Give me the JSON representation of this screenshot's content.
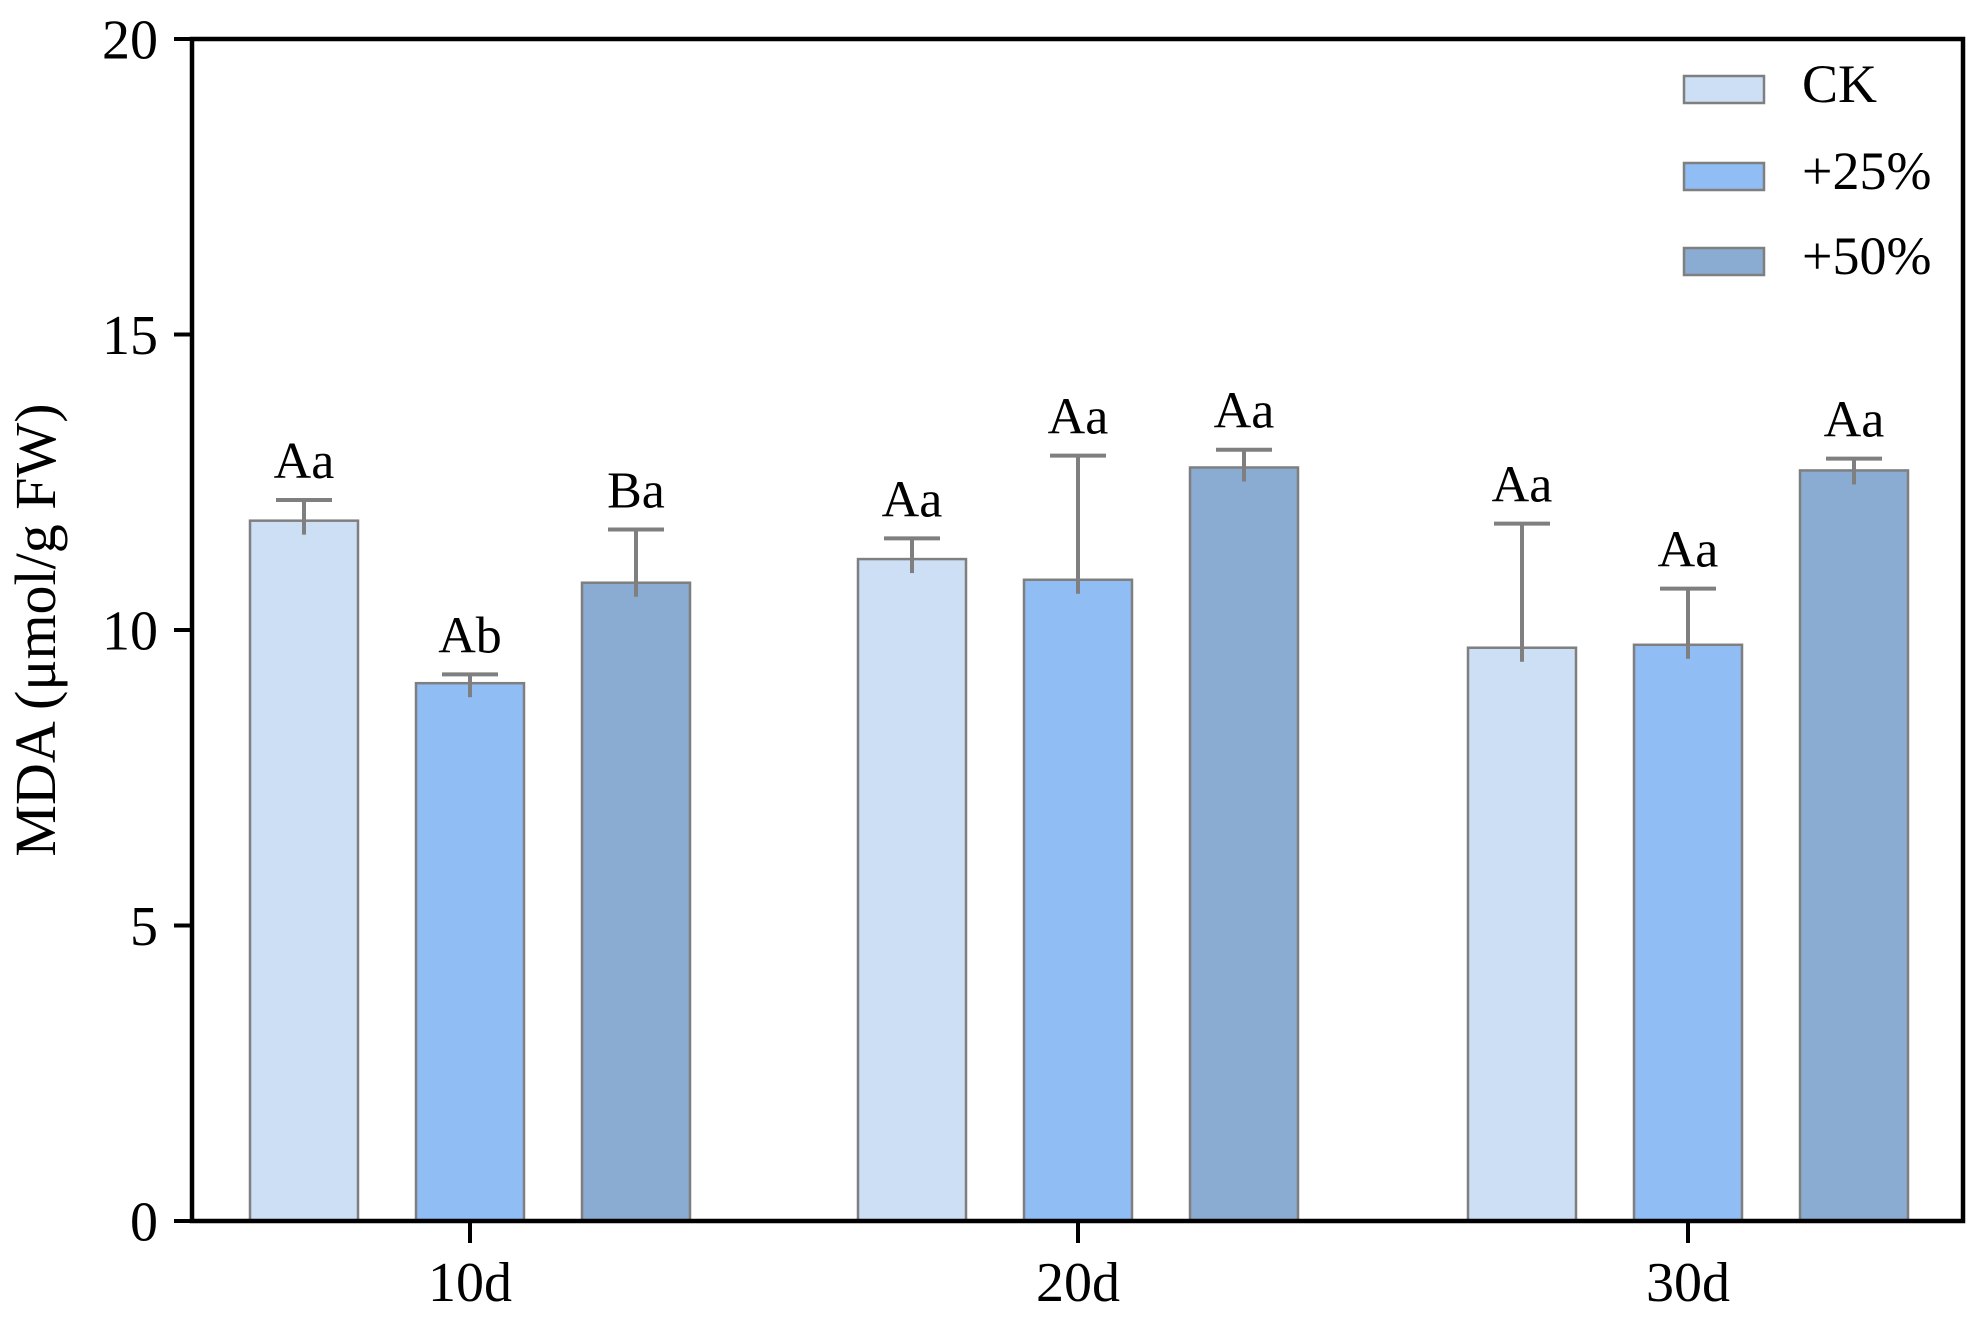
{
  "chart_data": {
    "type": "bar",
    "title": "",
    "xlabel": "",
    "ylabel": "MDA (μmol/g FW)",
    "categories": [
      "10d",
      "20d",
      "30d"
    ],
    "series": [
      {
        "name": "CK",
        "color": "#CDDFF5",
        "values": [
          11.85,
          11.2,
          9.7
        ],
        "errors_up": [
          0.35,
          0.35,
          2.1
        ],
        "sig_labels": [
          "Aa",
          "Aa",
          "Aa"
        ]
      },
      {
        "name": "+25%",
        "color": "#90BDF3",
        "values": [
          9.1,
          10.85,
          9.75
        ],
        "errors_up": [
          0.15,
          2.1,
          0.95
        ],
        "sig_labels": [
          "Ab",
          "Aa",
          "Aa"
        ]
      },
      {
        "name": "+50%",
        "color": "#8AABD2",
        "values": [
          10.8,
          12.75,
          12.7
        ],
        "errors_up": [
          0.9,
          0.3,
          0.2
        ],
        "sig_labels": [
          "Ba",
          "Aa",
          "Aa"
        ]
      }
    ],
    "ylim": [
      0,
      20
    ],
    "yticks": [
      0,
      5,
      10,
      15,
      20
    ],
    "ytick_labels": [
      "0",
      "5",
      "10",
      "15",
      "20"
    ],
    "grid": false,
    "legend": {
      "position": "top-right-inside",
      "entries": [
        "CK",
        "+25%",
        "+50%"
      ]
    },
    "colors": {
      "axis": "#000000",
      "text": "#000000",
      "error_bar": "#7f7f7f",
      "bar_edge": "#7f7f7f",
      "background": "#ffffff"
    }
  }
}
